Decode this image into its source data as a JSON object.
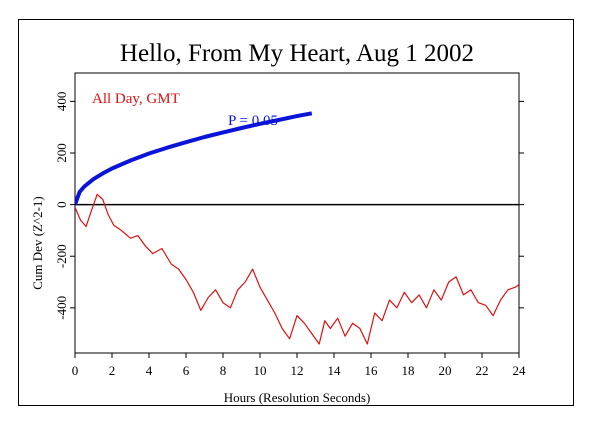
{
  "chart_data": {
    "type": "line",
    "title": "Hello, From My Heart, Aug 1 2002",
    "xlabel": "Hours (Resolution Seconds)",
    "ylabel": "Cum Dev (Z^2-1)",
    "xlim": [
      0,
      24
    ],
    "ylim": [
      -575,
      510
    ],
    "x_ticks": [
      0,
      2,
      4,
      6,
      8,
      10,
      12,
      14,
      16,
      18,
      20,
      22,
      24
    ],
    "y_ticks": [
      -400,
      -200,
      0,
      200,
      400
    ],
    "grid": false,
    "annotations": [
      {
        "text": "All Day, GMT",
        "color": "#e01010"
      },
      {
        "text": "P = 0.05",
        "color": "#0a14d8"
      }
    ],
    "series": [
      {
        "color": "#0a14d8",
        "x": [
          0,
          0.25,
          0.5,
          1,
          1.5,
          2,
          3,
          4,
          5,
          6,
          7,
          8,
          9,
          10,
          11,
          12,
          12.8
        ],
        "y": [
          0,
          49,
          70,
          99,
          121,
          140,
          171,
          198,
          221,
          242,
          262,
          280,
          297,
          313,
          328,
          343,
          354
        ]
      },
      {
        "color": "#e01010",
        "x": [
          0,
          0.3,
          0.6,
          0.9,
          1.2,
          1.5,
          1.8,
          2.1,
          2.5,
          3.0,
          3.4,
          3.8,
          4.2,
          4.7,
          5.2,
          5.6,
          6.0,
          6.4,
          6.8,
          7.2,
          7.6,
          8.0,
          8.4,
          8.8,
          9.2,
          9.6,
          10.0,
          10.4,
          10.8,
          11.2,
          11.6,
          12.0,
          12.4,
          12.8,
          13.2,
          13.5,
          13.8,
          14.2,
          14.6,
          15.0,
          15.4,
          15.8,
          16.2,
          16.6,
          17.0,
          17.4,
          17.8,
          18.2,
          18.6,
          19.0,
          19.4,
          19.8,
          20.2,
          20.6,
          21.0,
          21.4,
          21.8,
          22.2,
          22.6,
          23.0,
          23.4,
          23.8,
          24.0
        ],
        "y": [
          -10,
          -60,
          -85,
          -20,
          40,
          20,
          -40,
          -80,
          -100,
          -130,
          -120,
          -160,
          -190,
          -170,
          -230,
          -250,
          -290,
          -340,
          -410,
          -360,
          -330,
          -380,
          -400,
          -330,
          -300,
          -250,
          -320,
          -370,
          -420,
          -480,
          -520,
          -430,
          -460,
          -500,
          -540,
          -450,
          -480,
          -440,
          -510,
          -460,
          -480,
          -540,
          -420,
          -450,
          -370,
          -400,
          -340,
          -380,
          -350,
          -400,
          -330,
          -370,
          -300,
          -280,
          -350,
          -330,
          -380,
          -390,
          -430,
          -370,
          -330,
          -320,
          -310
        ]
      }
    ]
  }
}
